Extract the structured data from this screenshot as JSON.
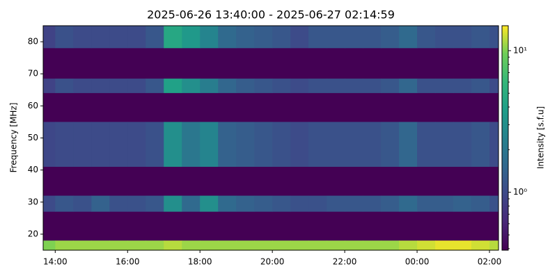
{
  "chart_data": {
    "type": "spectrogram",
    "title": "2025-06-26 13:40:00 - 2025-06-27 02:14:59",
    "ylabel": "Frequency [MHz]",
    "colorbar_label": "Intensity [s.f.u]",
    "xlim": [
      13.667,
      26.25
    ],
    "xticks": [
      {
        "value": 14,
        "label": "14:00"
      },
      {
        "value": 16,
        "label": "16:00"
      },
      {
        "value": 18,
        "label": "18:00"
      },
      {
        "value": 20,
        "label": "20:00"
      },
      {
        "value": 22,
        "label": "22:00"
      },
      {
        "value": 24,
        "label": "00:00"
      },
      {
        "value": 26,
        "label": "02:00"
      }
    ],
    "ylim": [
      15,
      85
    ],
    "yticks": [
      20,
      30,
      40,
      50,
      60,
      70,
      80
    ],
    "color_scale": "log",
    "clim": [
      0.39,
      15
    ],
    "cticks": [
      {
        "value": 1,
        "label": "10⁰"
      },
      {
        "value": 10,
        "label": "10¹"
      }
    ],
    "cminor_ticks": [
      0.4,
      0.5,
      0.6,
      0.7,
      0.8,
      0.9,
      2,
      3,
      4,
      5,
      6,
      7,
      8,
      9
    ],
    "time_edges": [
      13.667,
      14,
      14.5,
      15,
      15.5,
      16,
      16.5,
      17,
      17.5,
      18,
      18.5,
      19,
      19.5,
      20,
      20.5,
      21,
      21.5,
      22,
      22.5,
      23,
      23.5,
      24,
      24.5,
      25,
      25.5,
      26,
      26.25
    ],
    "freq_edges": [
      15,
      18,
      27,
      32,
      41,
      55,
      64,
      68.5,
      78,
      85
    ],
    "intensity": [
      [
        10,
        11,
        11,
        11,
        11,
        11,
        11,
        12,
        11,
        11,
        11,
        11,
        11,
        11,
        11,
        11,
        11,
        11,
        11,
        11,
        12,
        13,
        14,
        14,
        13,
        12
      ],
      null,
      [
        1.0,
        1.2,
        1.1,
        1.4,
        1.1,
        1.1,
        1.2,
        3.0,
        1.6,
        3.0,
        1.6,
        1.4,
        1.3,
        1.2,
        1.1,
        1.1,
        1.2,
        1.2,
        1.2,
        1.3,
        1.6,
        1.3,
        1.3,
        1.4,
        1.3,
        1.1
      ],
      null,
      [
        0.95,
        1.0,
        1.0,
        1.0,
        1.0,
        1.0,
        1.1,
        3.0,
        2.0,
        2.5,
        1.4,
        1.3,
        1.2,
        1.1,
        1.0,
        1.1,
        1.1,
        1.1,
        1.1,
        1.2,
        1.5,
        1.1,
        1.1,
        1.1,
        1.2,
        1.0
      ],
      null,
      [
        0.9,
        1.1,
        1.0,
        1.0,
        1.0,
        1.0,
        1.2,
        4.0,
        3.0,
        2.2,
        1.5,
        1.3,
        1.2,
        1.1,
        1.0,
        1.1,
        1.1,
        1.1,
        1.1,
        1.2,
        1.5,
        1.1,
        1.1,
        1.1,
        1.2,
        1.0
      ],
      null,
      [
        0.9,
        1.1,
        1.0,
        1.0,
        1.0,
        1.0,
        1.2,
        4.5,
        3.5,
        2.5,
        1.6,
        1.4,
        1.3,
        1.2,
        1.0,
        1.2,
        1.2,
        1.2,
        1.2,
        1.3,
        1.6,
        1.2,
        1.1,
        1.1,
        1.2,
        1.1
      ]
    ]
  }
}
